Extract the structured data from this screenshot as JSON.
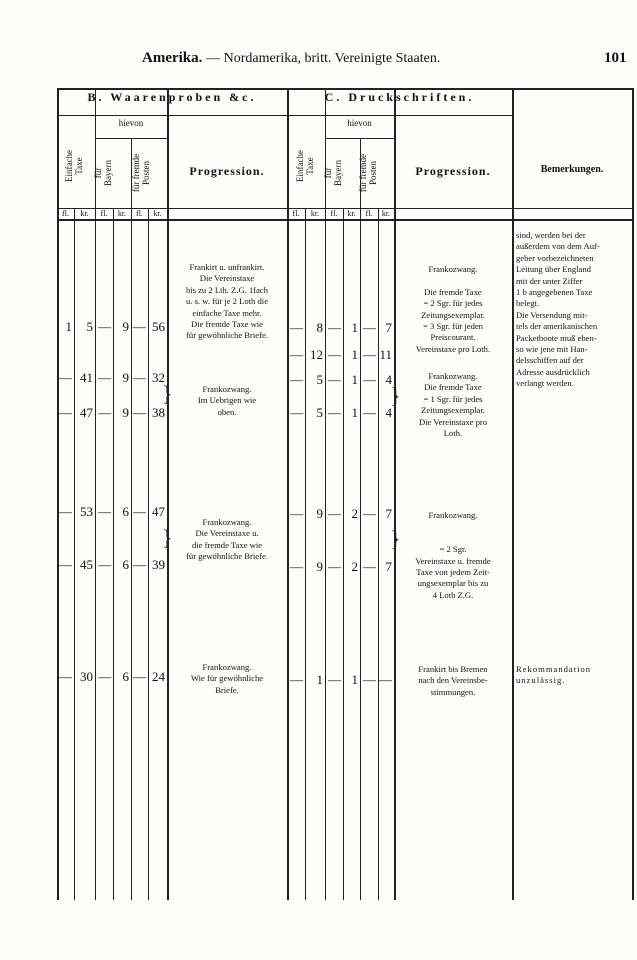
{
  "header": {
    "title": "Amerika.",
    "subtitle": "— Nordamerika, britt.  Vereinigte Staaten.",
    "page_number": "101"
  },
  "table": {
    "section_b": "B.  Waarenproben &c.",
    "section_c": "C.  Druckschriften.",
    "hievon": "hievon",
    "einfache_taxe": "Einfache\nTaxe",
    "fuer_bayern": "für\nBayern",
    "fuer_fremde": "für fremde\nPosten",
    "progression": "Progression.",
    "bemerkungen": "Bemerkungen.",
    "units": [
      "fl.",
      "kr.",
      "fl.",
      "kr.",
      "fl.",
      "kr."
    ]
  },
  "b_rows": [
    [
      "1",
      "5",
      "—",
      "9",
      "—",
      "56"
    ],
    [
      "—",
      "41",
      "—",
      "9",
      "—",
      "32"
    ],
    [
      "—",
      "47",
      "—",
      "9",
      "—",
      "38"
    ],
    [
      "—",
      "53",
      "—",
      "6",
      "—",
      "47"
    ],
    [
      "—",
      "45",
      "—",
      "6",
      "—",
      "39"
    ],
    [
      "—",
      "30",
      "—",
      "6",
      "—",
      "24"
    ]
  ],
  "c_rows": [
    [
      "—",
      "8",
      "—",
      "1",
      "—",
      "7"
    ],
    [
      "—",
      "12",
      "—",
      "1",
      "—",
      "11"
    ],
    [
      "—",
      "5",
      "—",
      "1",
      "—",
      "4"
    ],
    [
      "—",
      "5",
      "—",
      "1",
      "—",
      "4"
    ],
    [
      "—",
      "9",
      "—",
      "2",
      "—",
      "7"
    ],
    [
      "—",
      "9",
      "—",
      "2",
      "—",
      "7"
    ],
    [
      "—",
      "1",
      "—",
      "1",
      "—",
      "—"
    ]
  ],
  "b_progression": [
    "Frankirt u. unfrankirt.\nDie Vereinstaxe\nbis zu 2 Lth. Z.G. 1fach\nu. s. w. für je 2 Loth die\neinfache Taxe mehr.\nDie fremde Taxe wie\nfür gewöhnliche Briefe.",
    "Frankozwang.\nIm Uebrigen wie\noben.",
    "Frankozwang.\nDie Vereinstaxe u.\ndie fremde Taxe wie\nfür gewöhnliche Briefe.",
    "Frankozwang.\nWie für gewöhnliche\nBriefe."
  ],
  "c_progression": [
    "Frankozwang.\n\nDie fremde Taxe\n= 2 Sgr. für jedes\nZeitungsexemplar.\n= 3 Sgr. für jeden\nPreiscourant.\nVereinstaxe pro Loth.",
    "Frankozwang.\nDie fremde Taxe\n= 1 Sgr. für jedes\nZeitungsexemplar.\nDie Vereinstaxe pro\nLoth.",
    "Frankozwang.\n\n\n= 2 Sgr.\nVereinstaxe u. fremde\nTaxe von jedem Zeit-\nungsexemplar bis zu\n4 Loth Z.G.",
    "Frankirt bis Bremen\nnach den Vereinsbe-\nstimmungen."
  ],
  "remarks": [
    "sind, werden bei der\naußerdem von dem Auf-\ngeber vorbezeichneten\nLeitung über England\nmit der unter Ziffer\n1 b angegebenen Taxe\nbelegt.\nDie Versendung mit-\ntels der amerikanischen\nPacketboote muß eben-\nso wie jene mit Han-\ndelsschiffen auf der\nAdresse ausdrücklich\nverlangt werden.",
    "Rekommandation\nunzulässig."
  ]
}
